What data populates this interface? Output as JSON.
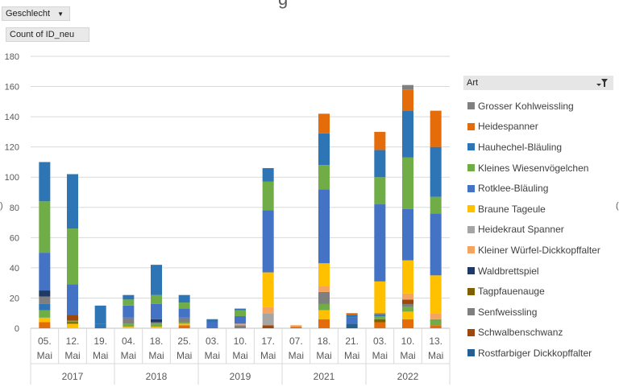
{
  "pivot": {
    "filter_label": "Geschlecht",
    "value_label": "Count of ID_neu",
    "legend_field_label": "Art",
    "title_fragment": "g",
    "side_fragment_left": ")",
    "side_fragment_right": "("
  },
  "icons": {
    "dropdown": "dropdown-arrow-icon",
    "filter": "filter-funnel-icon"
  },
  "chart_data": {
    "type": "bar",
    "stacked": true,
    "title": "",
    "xlabel": "",
    "ylabel": "",
    "ylim": [
      0,
      180
    ],
    "yticks": [
      0,
      20,
      40,
      60,
      80,
      100,
      120,
      140,
      160,
      180
    ],
    "grid": true,
    "legend_position": "right",
    "categories": [
      {
        "day": "05.",
        "month": "Mai",
        "year": "2017"
      },
      {
        "day": "12.",
        "month": "Mai",
        "year": "2017"
      },
      {
        "day": "19.",
        "month": "Mai",
        "year": "2017"
      },
      {
        "day": "04.",
        "month": "Mai",
        "year": "2018"
      },
      {
        "day": "18.",
        "month": "Mai",
        "year": "2018"
      },
      {
        "day": "25.",
        "month": "Mai",
        "year": "2018"
      },
      {
        "day": "03.",
        "month": "Mai",
        "year": "2019"
      },
      {
        "day": "10.",
        "month": "Mai",
        "year": "2019"
      },
      {
        "day": "17.",
        "month": "Mai",
        "year": "2019"
      },
      {
        "day": "07.",
        "month": "Mai",
        "year": "2021"
      },
      {
        "day": "18.",
        "month": "Mai",
        "year": "2021"
      },
      {
        "day": "21.",
        "month": "Mai",
        "year": "2021"
      },
      {
        "day": "03.",
        "month": "Mai",
        "year": "2022"
      },
      {
        "day": "10.",
        "month": "Mai",
        "year": "2022"
      },
      {
        "day": "13.",
        "month": "Mai",
        "year": "2022"
      }
    ],
    "years": [
      "2017",
      "2018",
      "2019",
      "2021",
      "2022"
    ],
    "series": [
      {
        "name": "Heidespanner",
        "color": "#E46C0A",
        "values": [
          4,
          0,
          0,
          0,
          0,
          2,
          0,
          0,
          0,
          1,
          6,
          0,
          4,
          6,
          2
        ]
      },
      {
        "name": "Kleiner Würfel-Dickkopffalter",
        "color": "#F4A460",
        "values": [
          0,
          0,
          0,
          0,
          0,
          0,
          0,
          0,
          0,
          1,
          0,
          0,
          0,
          0,
          0
        ]
      },
      {
        "name": "Braune Tageule",
        "color": "#FFC000",
        "values": [
          3,
          3,
          0,
          1,
          1,
          1,
          0,
          0,
          0,
          0,
          6,
          0,
          0,
          5,
          0
        ]
      },
      {
        "name": "Tagpfauenauge",
        "color": "#7F6000",
        "values": [
          0,
          1,
          0,
          0,
          0,
          0,
          0,
          0,
          0,
          0,
          0,
          0,
          2,
          0,
          0
        ]
      },
      {
        "name": "Kleines Wiesenvögelchen",
        "color": "#70AD47",
        "values": [
          5,
          1,
          0,
          2,
          2,
          1,
          0,
          0,
          0,
          0,
          4,
          0,
          2,
          3,
          4
        ]
      },
      {
        "name": "Hauhechel-Bläuling",
        "color": "#2E75B6",
        "values": [
          4,
          0,
          3,
          0,
          0,
          0,
          0,
          0,
          0,
          0,
          0,
          0,
          1,
          0,
          0
        ]
      },
      {
        "name": "Senfweissling",
        "color": "#7F7F7F",
        "values": [
          5,
          0,
          0,
          4,
          1,
          3,
          0,
          2,
          0,
          0,
          8,
          0,
          1,
          2,
          0
        ]
      },
      {
        "name": "Schwalbenschwanz",
        "color": "#9E480E",
        "values": [
          0,
          4,
          0,
          0,
          0,
          0,
          0,
          0,
          2,
          0,
          0,
          0,
          0,
          3,
          0
        ]
      },
      {
        "name": "Waldbrettspiel",
        "color": "#203864",
        "values": [
          4,
          0,
          0,
          0,
          2,
          0,
          0,
          0,
          0,
          0,
          0,
          0,
          0,
          0,
          0
        ]
      },
      {
        "name": "Rostfarbiger Dickkopffalter",
        "color": "#255E91",
        "values": [
          0,
          0,
          0,
          0,
          0,
          0,
          0,
          0,
          0,
          0,
          0,
          3,
          0,
          0,
          0
        ]
      },
      {
        "name": "Heidekraut Spanner",
        "color": "#A5A5A5",
        "values": [
          0,
          0,
          0,
          0,
          0,
          0,
          0,
          0,
          8,
          0,
          0,
          0,
          0,
          0,
          0
        ]
      },
      {
        "name": "Kleiner Würfel-Dickkopffalter",
        "color": "#F4A460",
        "values": [
          0,
          0,
          0,
          0,
          0,
          0,
          0,
          1,
          4,
          0,
          4,
          0,
          0,
          4,
          4
        ]
      },
      {
        "name": "Braune Tageule",
        "color": "#FFC000",
        "values": [
          0,
          0,
          0,
          0,
          0,
          0,
          0,
          0,
          23,
          0,
          15,
          0,
          21,
          22,
          25
        ]
      },
      {
        "name": "Rotklee-Bläuling",
        "color": "#4472C4",
        "values": [
          25,
          20,
          0,
          8,
          10,
          6,
          4,
          5,
          41,
          0,
          49,
          4,
          51,
          34,
          41
        ]
      },
      {
        "name": "Kleines Wiesenvögelchen",
        "color": "#70AD47",
        "values": [
          34,
          37,
          0,
          4,
          6,
          4,
          0,
          4,
          19,
          0,
          16,
          0,
          18,
          34,
          11
        ]
      },
      {
        "name": "Hauhechel-Bläuling",
        "color": "#2E75B6",
        "values": [
          26,
          36,
          12,
          3,
          20,
          5,
          2,
          1,
          9,
          0,
          21,
          2,
          18,
          31,
          33
        ]
      },
      {
        "name": "Heidespanner",
        "color": "#E46C0A",
        "values": [
          0,
          0,
          0,
          0,
          0,
          0,
          0,
          0,
          0,
          0,
          13,
          1,
          12,
          14,
          24
        ]
      },
      {
        "name": "Grosser Kohlweissling",
        "color": "#808080",
        "values": [
          0,
          0,
          0,
          0,
          0,
          0,
          0,
          0,
          0,
          0,
          0,
          0,
          0,
          3,
          0
        ]
      }
    ],
    "legend": [
      {
        "name": "Grosser Kohlweissling",
        "color": "#808080"
      },
      {
        "name": "Heidespanner",
        "color": "#E46C0A"
      },
      {
        "name": "Hauhechel-Bläuling",
        "color": "#2E75B6"
      },
      {
        "name": "Kleines Wiesenvögelchen",
        "color": "#70AD47"
      },
      {
        "name": "Rotklee-Bläuling",
        "color": "#4472C4"
      },
      {
        "name": "Braune Tageule",
        "color": "#FFC000"
      },
      {
        "name": "Heidekraut Spanner",
        "color": "#A5A5A5"
      },
      {
        "name": "Kleiner Würfel-Dickkopffalter",
        "color": "#F4A460"
      },
      {
        "name": "Waldbrettspiel",
        "color": "#203864"
      },
      {
        "name": "Tagpfauenauge",
        "color": "#7F6000"
      },
      {
        "name": "Senfweissling",
        "color": "#7F7F7F"
      },
      {
        "name": "Schwalbenschwanz",
        "color": "#9E480E"
      },
      {
        "name": "Rostfarbiger Dickkopffalter",
        "color": "#255E91"
      }
    ]
  }
}
